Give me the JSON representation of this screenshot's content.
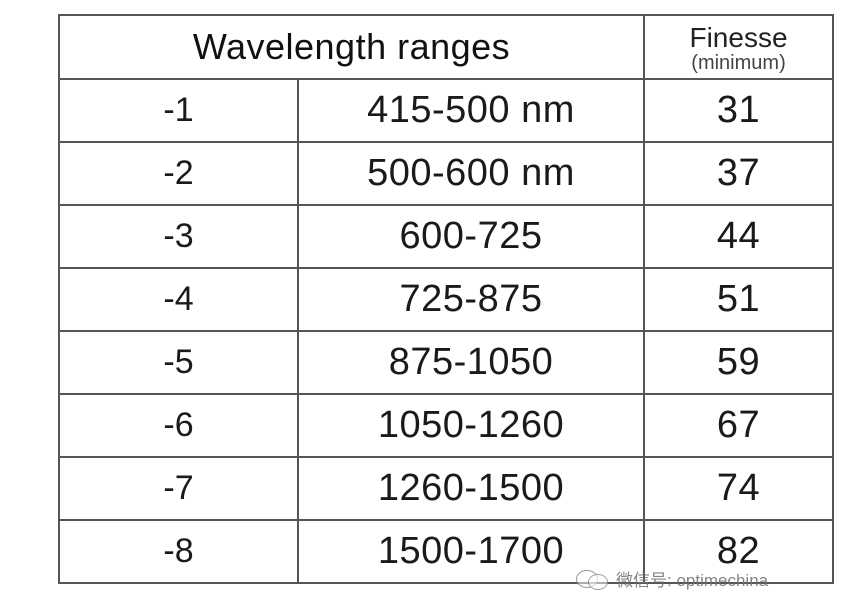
{
  "table": {
    "header": {
      "wavelength_title": "Wavelength ranges",
      "finesse_title": "Finesse",
      "finesse_subtitle": "(minimum)"
    },
    "rows": [
      {
        "code": "-1",
        "range": "415-500 nm",
        "finesse": "31"
      },
      {
        "code": "-2",
        "range": "500-600 nm",
        "finesse": "37"
      },
      {
        "code": "-3",
        "range": "600-725",
        "finesse": "44"
      },
      {
        "code": "-4",
        "range": "725-875",
        "finesse": "51"
      },
      {
        "code": "-5",
        "range": "875-1050",
        "finesse": "59"
      },
      {
        "code": "-6",
        "range": "1050-1260",
        "finesse": "67"
      },
      {
        "code": "-7",
        "range": "1260-1500",
        "finesse": "74"
      },
      {
        "code": "-8",
        "range": "1500-1700",
        "finesse": "82"
      }
    ]
  },
  "watermark": {
    "icon": "wechat-icon",
    "text": "微信号: optimechina"
  }
}
